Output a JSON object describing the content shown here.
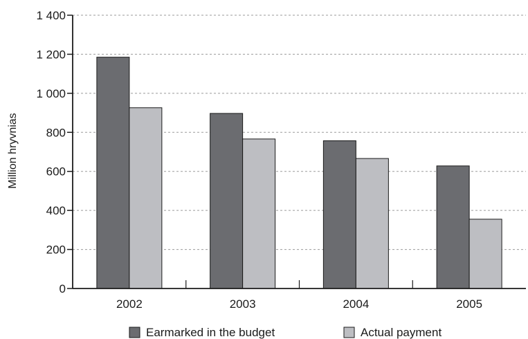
{
  "chart_data": {
    "type": "bar",
    "title": "",
    "xlabel": "",
    "ylabel": "Million hryvnias",
    "categories": [
      "2002",
      "2003",
      "2004",
      "2005"
    ],
    "series": [
      {
        "name": "Earmarked in the budget",
        "color": "#6b6c70",
        "values": [
          1185,
          897,
          757,
          628
        ]
      },
      {
        "name": "Actual payment",
        "color": "#bdbec2",
        "values": [
          926,
          766,
          666,
          355
        ]
      }
    ],
    "ylim": [
      0,
      1400
    ],
    "yticks": [
      0,
      200,
      400,
      600,
      800,
      1000,
      1200,
      1400
    ],
    "ytick_labels": [
      "0",
      "200",
      "400",
      "600",
      "800",
      "1 000",
      "1 200",
      "1 400"
    ],
    "grid": "dashed horizontal",
    "legend_position": "bottom"
  }
}
